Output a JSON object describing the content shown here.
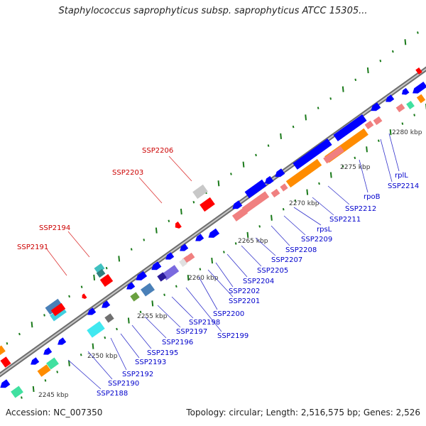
{
  "title": "Staphylococcus saprophyticus subsp. saprophyticus ATCC 15305...",
  "accession": "Accession: NC_007350",
  "summary": "Topology: circular; Length: 2,516,575 bp; Genes: 2,526",
  "colors": {
    "backbone": "#9a9a9a",
    "gc_tick": "#1a7a1a",
    "forward_label": "#cc0000",
    "reverse_label": "#0000cc"
  },
  "ticks": [
    "2245 kbp",
    "2250 kbp",
    "2255 kbp",
    "2260 kbp",
    "2265 kbp",
    "2270 kbp",
    "2275 kbp",
    "2280 kbp"
  ],
  "forward_labels": [
    "SSP2191",
    "SSP2194",
    "SSP2203",
    "SSP2206"
  ],
  "reverse_labels": [
    "SSP2188",
    "SSP2190",
    "SSP2192",
    "SSP2193",
    "SSP2195",
    "SSP2196",
    "SSP2197",
    "SSP2198",
    "SSP2199",
    "SSP2200",
    "SSP2201",
    "SSP2202",
    "SSP2204",
    "SSP2205",
    "SSP2207",
    "SSP2208",
    "SSP2209",
    "rpsL",
    "SSP2211",
    "SSP2212",
    "rpoB",
    "SSP2214",
    "rplL"
  ]
}
